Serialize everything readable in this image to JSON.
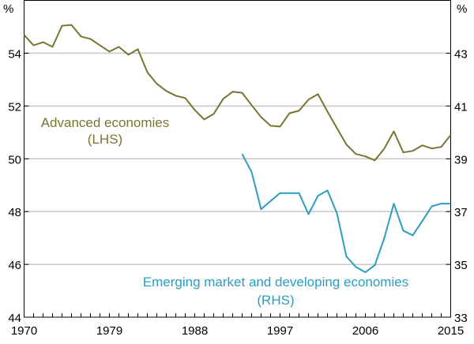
{
  "chart_data": {
    "type": "line",
    "title": "",
    "left_unit": "%",
    "right_unit": "%",
    "x": [
      1970,
      1971,
      1972,
      1973,
      1974,
      1975,
      1976,
      1977,
      1978,
      1979,
      1980,
      1981,
      1982,
      1983,
      1984,
      1985,
      1986,
      1987,
      1988,
      1989,
      1990,
      1991,
      1992,
      1993,
      1994,
      1995,
      1996,
      1997,
      1998,
      1999,
      2000,
      2001,
      2002,
      2003,
      2004,
      2005,
      2006,
      2007,
      2008,
      2009,
      2010,
      2011,
      2012,
      2013,
      2014,
      2015
    ],
    "xticks": [
      "1970",
      "1979",
      "1988",
      "1997",
      "2006",
      "2015"
    ],
    "left_axis": {
      "ylim": [
        44,
        56
      ],
      "ticks": [
        "54",
        "52",
        "50",
        "48",
        "46",
        "44"
      ]
    },
    "right_axis": {
      "ylim": [
        33,
        45
      ],
      "ticks": [
        "43",
        "41",
        "39",
        "37",
        "35",
        "33"
      ]
    },
    "series": [
      {
        "name": "Advanced economies",
        "axis_label": "(LHS)",
        "axis": "left",
        "color": "#7a7432",
        "values": [
          54.69,
          54.3,
          54.42,
          54.24,
          55.04,
          55.07,
          54.63,
          54.54,
          54.3,
          54.06,
          54.24,
          53.94,
          54.15,
          53.28,
          52.84,
          52.57,
          52.39,
          52.3,
          51.85,
          51.49,
          51.7,
          52.27,
          52.54,
          52.5,
          52.03,
          51.58,
          51.25,
          51.22,
          51.73,
          51.82,
          52.24,
          52.45,
          51.79,
          51.16,
          50.54,
          50.18,
          50.09,
          49.94,
          50.39,
          51.04,
          50.24,
          50.3,
          50.51,
          50.39,
          50.45,
          50.9
        ]
      },
      {
        "name": "Emerging market and developing economies",
        "axis_label": "(RHS)",
        "axis": "right",
        "color": "#2a9ec0",
        "values": [
          null,
          null,
          null,
          null,
          null,
          null,
          null,
          null,
          null,
          null,
          null,
          null,
          null,
          null,
          null,
          null,
          null,
          null,
          null,
          null,
          null,
          null,
          null,
          39.18,
          38.5,
          37.09,
          37.4,
          37.7,
          37.7,
          37.7,
          36.9,
          37.6,
          37.8,
          36.94,
          35.3,
          34.9,
          34.7,
          34.97,
          36.0,
          37.3,
          36.28,
          36.1,
          36.64,
          37.2,
          37.3,
          37.3
        ]
      }
    ]
  }
}
